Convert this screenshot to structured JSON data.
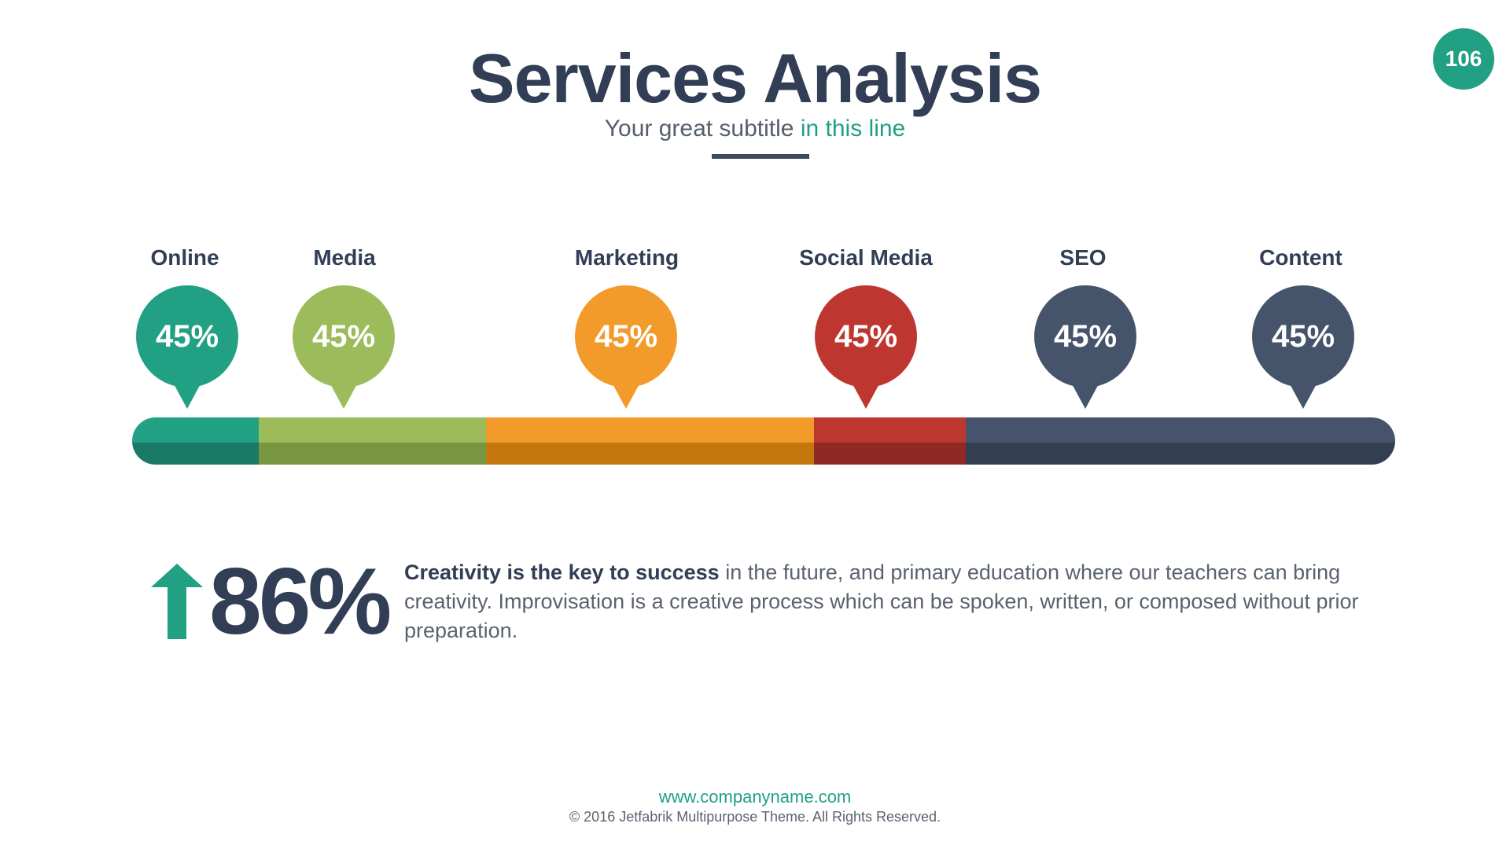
{
  "page_number": "106",
  "header": {
    "title": "Services Analysis",
    "subtitle_plain": "Your great subtitle ",
    "subtitle_accent": "in this line"
  },
  "categories": [
    {
      "label": "Online",
      "value": "45%",
      "color": "#21a084",
      "color_dark": "#1a7a65",
      "span": 0.1
    },
    {
      "label": "Media",
      "value": "45%",
      "color": "#9cbb5a",
      "color_dark": "#78953f",
      "span": 0.18
    },
    {
      "label": "Marketing",
      "value": "45%",
      "color": "#f29b2a",
      "color_dark": "#c4770e",
      "span": 0.26
    },
    {
      "label": "Social Media",
      "value": "45%",
      "color": "#bd3730",
      "color_dark": "#8f2925",
      "span": 0.12
    },
    {
      "label": "SEO",
      "value": "45%",
      "color": "#45546b",
      "color_dark": "#333e50",
      "span": 0.17
    },
    {
      "label": "Content",
      "value": "45%",
      "color": "#45546b",
      "color_dark": "#333e50",
      "span": 0.17
    }
  ],
  "stat": {
    "value": "86%",
    "arrow_icon": "arrow-up-icon",
    "arrow_color": "#21a084",
    "lead": "Creativity is the key to success",
    "text": " in the future, and primary education where our teachers can bring creativity. Improvisation is a creative process which can be spoken, written, or composed without prior preparation."
  },
  "footer": {
    "url": "www.companyname.com",
    "copyright": "© 2016 Jetfabrik Multipurpose Theme. All Rights Reserved."
  }
}
